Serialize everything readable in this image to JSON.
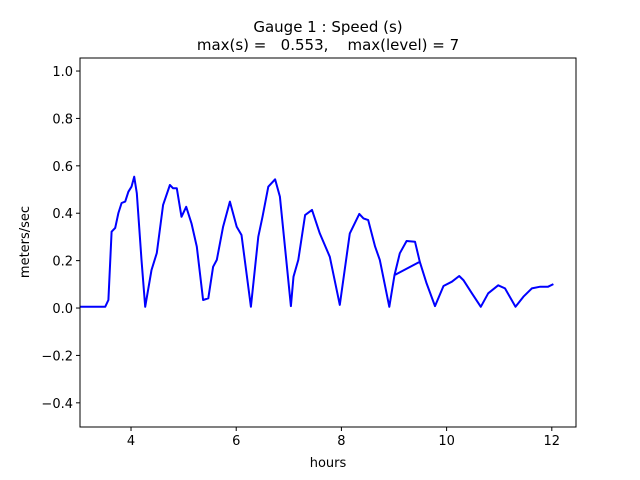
{
  "chart_data": {
    "type": "line",
    "title": "Gauge 1 : Speed (s)",
    "subtitle": "max(s) =   0.553,    max(level) = 7",
    "xlabel": "hours",
    "ylabel": "meters/sec",
    "xlim": [
      3.03,
      12.46
    ],
    "ylim": [
      -0.502,
      1.055
    ],
    "xticks": [
      4,
      6,
      8,
      10,
      12
    ],
    "xtick_labels": [
      "4",
      "6",
      "8",
      "10",
      "12"
    ],
    "yticks": [
      -0.4,
      -0.2,
      0.0,
      0.2,
      0.4,
      0.6,
      0.8,
      1.0
    ],
    "ytick_labels": [
      "−0.4",
      "−0.2",
      "0.0",
      "0.2",
      "0.4",
      "0.6",
      "0.8",
      "1.0"
    ],
    "grid": false,
    "series": [
      {
        "name": "speed",
        "color": "#0000ff",
        "points": [
          [
            3.03,
            0.005
          ],
          [
            3.51,
            0.005
          ],
          [
            3.57,
            0.034
          ],
          [
            3.63,
            0.322
          ],
          [
            3.7,
            0.338
          ],
          [
            3.76,
            0.401
          ],
          [
            3.82,
            0.443
          ],
          [
            3.89,
            0.449
          ],
          [
            3.95,
            0.491
          ],
          [
            4.01,
            0.512
          ],
          [
            4.06,
            0.554
          ],
          [
            4.11,
            0.485
          ],
          [
            4.2,
            0.203
          ],
          [
            4.27,
            0.005
          ],
          [
            4.39,
            0.16
          ],
          [
            4.49,
            0.232
          ],
          [
            4.61,
            0.435
          ],
          [
            4.74,
            0.519
          ],
          [
            4.8,
            0.505
          ],
          [
            4.87,
            0.505
          ],
          [
            4.96,
            0.385
          ],
          [
            5.05,
            0.427
          ],
          [
            5.15,
            0.357
          ],
          [
            5.25,
            0.259
          ],
          [
            5.37,
            0.034
          ],
          [
            5.47,
            0.041
          ],
          [
            5.56,
            0.174
          ],
          [
            5.63,
            0.203
          ],
          [
            5.75,
            0.343
          ],
          [
            5.88,
            0.449
          ],
          [
            6.01,
            0.343
          ],
          [
            6.1,
            0.308
          ],
          [
            6.28,
            0.005
          ],
          [
            6.42,
            0.301
          ],
          [
            6.5,
            0.385
          ],
          [
            6.61,
            0.512
          ],
          [
            6.74,
            0.543
          ],
          [
            6.83,
            0.47
          ],
          [
            7.04,
            0.008
          ],
          [
            7.09,
            0.132
          ],
          [
            7.18,
            0.203
          ],
          [
            7.31,
            0.392
          ],
          [
            7.44,
            0.414
          ],
          [
            7.59,
            0.315
          ],
          [
            7.78,
            0.216
          ],
          [
            7.97,
            0.013
          ],
          [
            8.16,
            0.315
          ],
          [
            8.34,
            0.397
          ],
          [
            8.42,
            0.378
          ],
          [
            8.51,
            0.371
          ],
          [
            8.64,
            0.259
          ],
          [
            8.73,
            0.203
          ],
          [
            8.91,
            0.005
          ],
          [
            9.01,
            0.139
          ],
          [
            9.11,
            0.231
          ],
          [
            9.24,
            0.283
          ],
          [
            9.4,
            0.28
          ],
          [
            9.49,
            0.195
          ],
          [
            9.01,
            0.139
          ],
          [
            9.11,
            0.231
          ],
          [
            9.24,
            0.283
          ],
          [
            9.4,
            0.28
          ],
          [
            9.49,
            0.195
          ],
          [
            9.62,
            0.104
          ],
          [
            9.78,
            0.008
          ],
          [
            9.94,
            0.093
          ],
          [
            10.1,
            0.111
          ],
          [
            10.24,
            0.135
          ],
          [
            10.32,
            0.118
          ],
          [
            10.48,
            0.062
          ],
          [
            10.65,
            0.005
          ],
          [
            10.79,
            0.062
          ],
          [
            10.98,
            0.096
          ],
          [
            11.11,
            0.083
          ],
          [
            11.31,
            0.005
          ],
          [
            11.46,
            0.048
          ],
          [
            11.62,
            0.083
          ],
          [
            11.78,
            0.09
          ],
          [
            11.93,
            0.09
          ],
          [
            12.03,
            0.101
          ]
        ]
      }
    ]
  }
}
